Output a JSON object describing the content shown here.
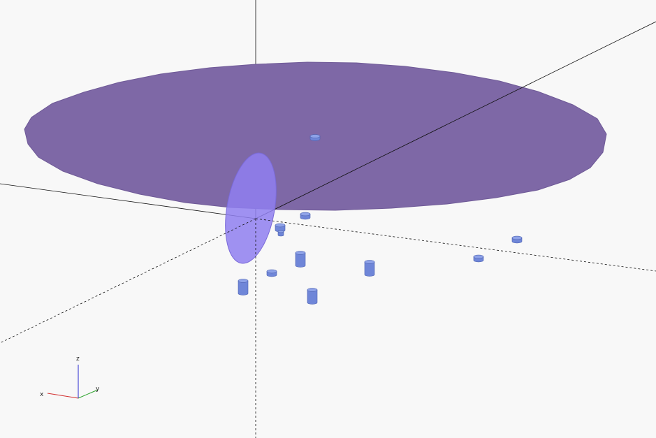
{
  "viewport": {
    "background": "#f8f8f8"
  },
  "scene": {
    "colors": {
      "disk_fill": "#7e68a6",
      "disk_edge": "#6f5a97",
      "ellipse_fill": "#8f7ff0",
      "cylinder_fill": "#6f86d8",
      "cylinder_top": "#8ea2e8",
      "cylinder_edge": "#4d62b0",
      "axis_line": "#111111"
    },
    "objects": [
      {
        "name": "large-purple-disk",
        "shape": "disk"
      },
      {
        "name": "vertical-ellipse",
        "shape": "ellipse"
      },
      {
        "name": "small-cylinder",
        "shape": "cylinder"
      }
    ]
  },
  "axis_indicator": {
    "x_label": "x",
    "y_label": "y",
    "z_label": "z",
    "x_color": "#d23030",
    "y_color": "#2aa22a",
    "z_color": "#2a2ad0"
  }
}
